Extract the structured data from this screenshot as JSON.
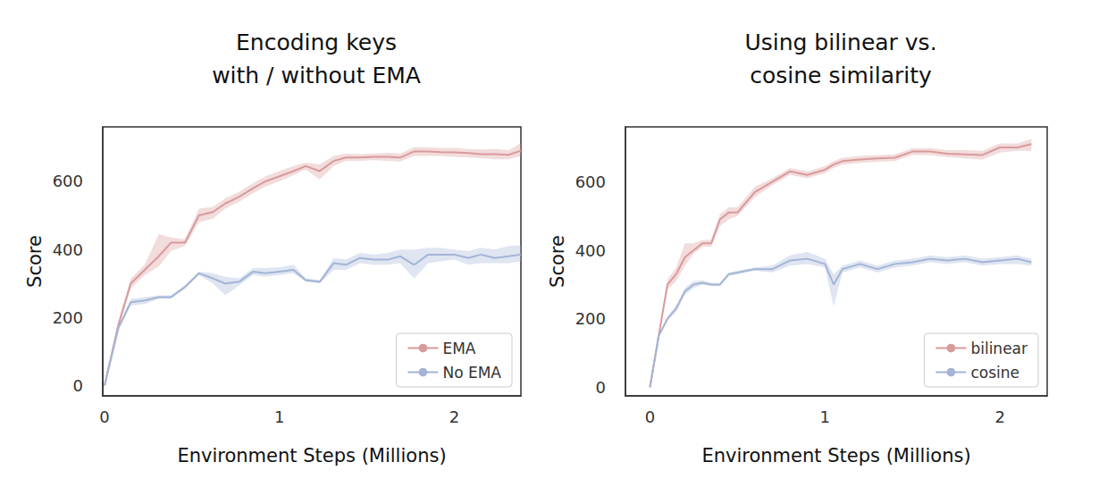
{
  "chart_data": [
    {
      "type": "line",
      "title": "Encoding keys\nwith / without EMA",
      "x_label": "Environment Steps (Millions)",
      "y_label": "Score",
      "x": [
        0,
        0.08,
        0.15,
        0.23,
        0.31,
        0.38,
        0.46,
        0.54,
        0.62,
        0.69,
        0.77,
        0.85,
        0.92,
        1.0,
        1.08,
        1.15,
        1.23,
        1.31,
        1.38,
        1.46,
        1.54,
        1.62,
        1.69,
        1.77,
        1.85,
        1.92,
        2.0,
        2.08,
        2.15,
        2.23,
        2.31,
        2.38
      ],
      "series": [
        {
          "name": "EMA",
          "color": "#d99a9c",
          "values": [
            0,
            180,
            300,
            340,
            380,
            420,
            420,
            500,
            510,
            535,
            555,
            580,
            600,
            615,
            630,
            645,
            630,
            660,
            670,
            670,
            672,
            672,
            670,
            688,
            688,
            686,
            685,
            683,
            680,
            680,
            678,
            690
          ],
          "lower": [
            0,
            170,
            285,
            325,
            350,
            395,
            410,
            480,
            490,
            520,
            540,
            565,
            585,
            600,
            618,
            635,
            605,
            645,
            660,
            660,
            662,
            660,
            658,
            675,
            675,
            675,
            672,
            670,
            668,
            665,
            665,
            675
          ],
          "upper": [
            0,
            190,
            315,
            355,
            445,
            435,
            430,
            520,
            525,
            550,
            570,
            595,
            615,
            630,
            645,
            655,
            650,
            675,
            682,
            680,
            682,
            684,
            682,
            700,
            700,
            698,
            698,
            695,
            694,
            695,
            692,
            712
          ]
        },
        {
          "name": "No EMA",
          "color": "#a3b4d6",
          "values": [
            0,
            170,
            245,
            250,
            260,
            260,
            290,
            330,
            315,
            300,
            305,
            335,
            330,
            335,
            340,
            310,
            305,
            360,
            355,
            375,
            370,
            370,
            380,
            355,
            385,
            385,
            385,
            375,
            385,
            375,
            380,
            385
          ],
          "lower": [
            0,
            165,
            235,
            240,
            255,
            255,
            285,
            325,
            300,
            265,
            295,
            325,
            320,
            325,
            330,
            305,
            300,
            340,
            340,
            360,
            355,
            355,
            360,
            315,
            360,
            365,
            370,
            355,
            360,
            360,
            360,
            365
          ],
          "upper": [
            0,
            175,
            255,
            260,
            265,
            265,
            295,
            335,
            330,
            320,
            315,
            345,
            345,
            348,
            355,
            315,
            310,
            375,
            370,
            390,
            385,
            390,
            400,
            400,
            405,
            405,
            400,
            395,
            405,
            400,
            410,
            412
          ]
        }
      ],
      "xlim": [
        -0.01,
        2.38
      ],
      "ylim": [
        -30,
        760
      ],
      "xticks": [
        0,
        1,
        2
      ],
      "yticks": [
        0,
        200,
        400,
        600
      ],
      "grid": false,
      "legend": "lower right"
    },
    {
      "type": "line",
      "title": "Using bilinear vs.\ncosine similarity",
      "x_label": "Environment Steps (Millions)",
      "y_label": "Score",
      "x": [
        0,
        0.05,
        0.1,
        0.15,
        0.2,
        0.25,
        0.3,
        0.35,
        0.4,
        0.45,
        0.5,
        0.6,
        0.7,
        0.8,
        0.9,
        1.0,
        1.05,
        1.1,
        1.2,
        1.3,
        1.4,
        1.5,
        1.6,
        1.7,
        1.8,
        1.9,
        2.0,
        2.1,
        2.18
      ],
      "series": [
        {
          "name": "bilinear",
          "color": "#d99a9c",
          "values": [
            0,
            150,
            300,
            330,
            380,
            400,
            420,
            420,
            490,
            510,
            510,
            570,
            600,
            630,
            620,
            635,
            650,
            660,
            665,
            668,
            670,
            688,
            688,
            682,
            680,
            678,
            700,
            700,
            710
          ],
          "lower": [
            0,
            145,
            285,
            310,
            355,
            390,
            410,
            410,
            470,
            490,
            500,
            555,
            590,
            620,
            610,
            625,
            640,
            650,
            655,
            658,
            660,
            678,
            678,
            672,
            668,
            665,
            685,
            690,
            690
          ],
          "upper": [
            0,
            155,
            315,
            350,
            420,
            420,
            430,
            430,
            505,
            525,
            525,
            585,
            610,
            640,
            630,
            645,
            660,
            670,
            675,
            678,
            680,
            698,
            698,
            692,
            692,
            690,
            712,
            712,
            725
          ]
        },
        {
          "name": "cosine",
          "color": "#a3b4d6",
          "values": [
            0,
            150,
            200,
            230,
            280,
            300,
            305,
            300,
            300,
            330,
            335,
            345,
            345,
            370,
            375,
            360,
            300,
            345,
            360,
            345,
            360,
            365,
            375,
            370,
            375,
            365,
            370,
            375,
            365
          ],
          "lower": [
            0,
            145,
            195,
            220,
            270,
            290,
            300,
            295,
            295,
            325,
            330,
            340,
            335,
            355,
            360,
            350,
            235,
            335,
            350,
            335,
            350,
            355,
            365,
            360,
            365,
            355,
            360,
            360,
            355
          ],
          "upper": [
            0,
            155,
            205,
            240,
            290,
            310,
            312,
            305,
            305,
            335,
            340,
            350,
            355,
            385,
            395,
            375,
            330,
            355,
            370,
            355,
            370,
            375,
            385,
            380,
            385,
            375,
            380,
            385,
            375
          ]
        }
      ],
      "xlim": [
        -0.14,
        2.27
      ],
      "ylim": [
        -25,
        760
      ],
      "xticks": [
        0,
        1,
        2
      ],
      "yticks": [
        0,
        200,
        400,
        600
      ],
      "grid": false,
      "legend": "lower right"
    }
  ]
}
